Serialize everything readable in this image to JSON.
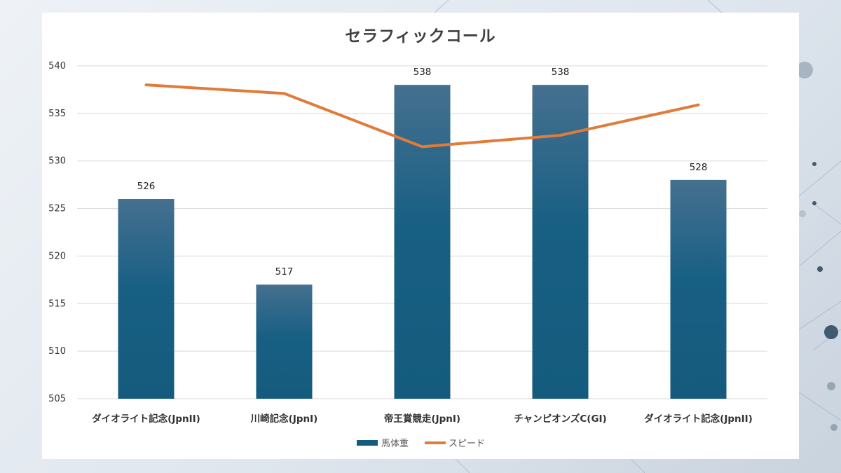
{
  "chart_data": {
    "type": "bar",
    "title": "セラフィックコール",
    "categories": [
      "ダイオライト記念(JpnII)",
      "川崎記念(JpnI)",
      "帝王賞競走(JpnI)",
      "チャンピオンズC(GI)",
      "ダイオライト記念(JpnII)"
    ],
    "series": [
      {
        "name": "馬体重",
        "type": "bar",
        "values": [
          526,
          517,
          538,
          538,
          528
        ],
        "color": "#145b7d"
      },
      {
        "name": "スピード",
        "type": "line",
        "values": [
          538,
          537.1,
          531.5,
          532.7,
          535.9
        ],
        "color": "#e07b39"
      }
    ],
    "ylim": [
      505,
      540
    ],
    "yticks": [
      "505",
      "510",
      "515",
      "520",
      "525",
      "530",
      "535",
      "540"
    ],
    "grid": true,
    "legend_position": "bottom"
  }
}
